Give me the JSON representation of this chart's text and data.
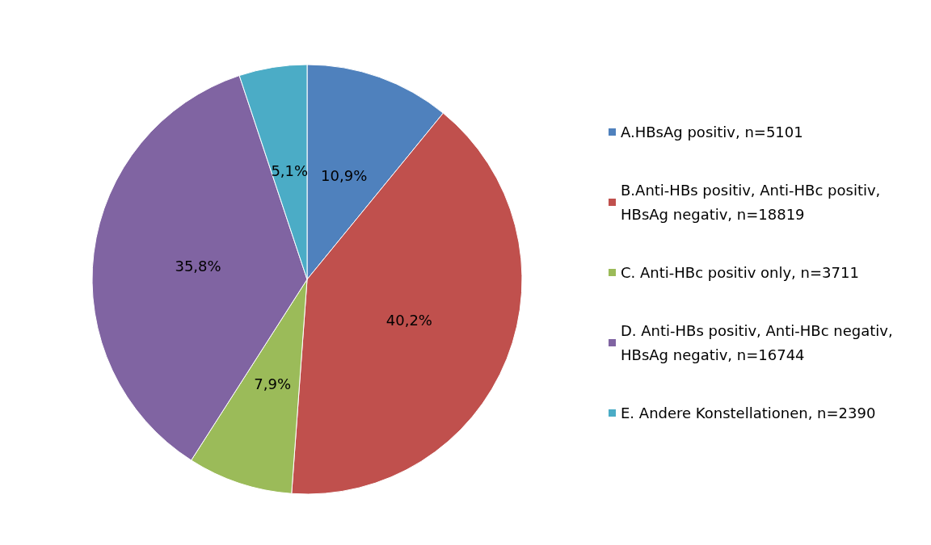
{
  "chart_data": {
    "type": "pie",
    "categories": [
      "A.HBsAg positiv, n=5101",
      "B.Anti-HBs positiv, Anti-HBc positiv, HBsAg negativ, n=18819",
      "C. Anti-HBc positiv only, n=3711",
      "D. Anti-HBs positiv, Anti-HBc negativ, HBsAg negativ, n=16744",
      "E. Andere Konstellationen, n=2390"
    ],
    "values": [
      10.9,
      40.2,
      7.9,
      35.8,
      5.1
    ],
    "value_labels": [
      "10,9%",
      "40,2%",
      "7,9%",
      "35,8%",
      "5,1%"
    ],
    "colors": [
      "#4f81bd",
      "#c0504d",
      "#9bbb59",
      "#8064a2",
      "#4bacc6"
    ],
    "legend": "right"
  }
}
